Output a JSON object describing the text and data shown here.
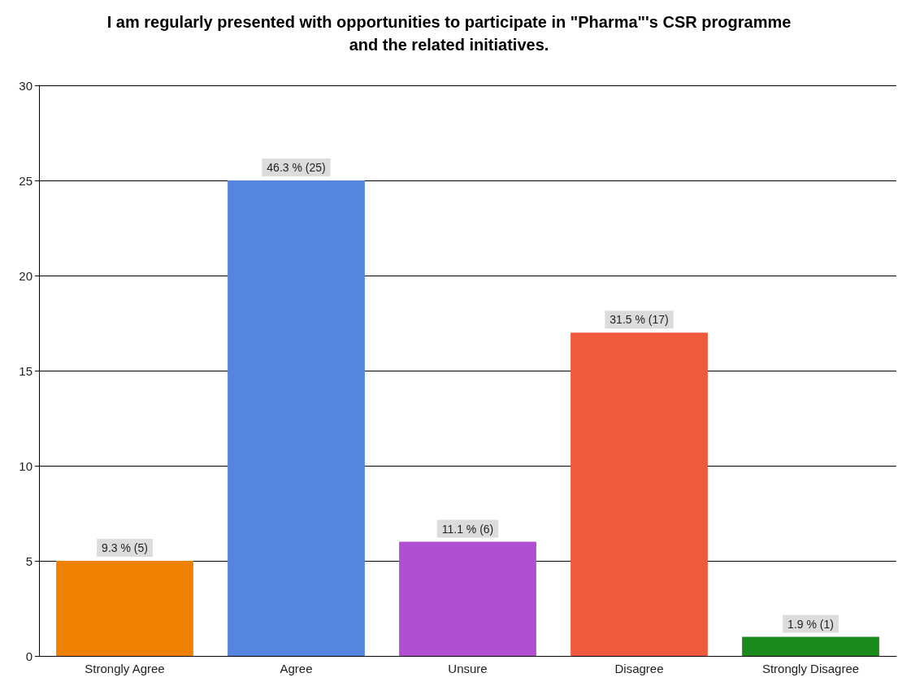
{
  "chart_data": {
    "type": "bar",
    "title": "I am regularly presented with opportunities to participate in \"Pharma\"'s CSR programme\nand the related initiatives.",
    "categories": [
      "Strongly Agree",
      "Agree",
      "Unsure",
      "Disagree",
      "Strongly Disagree"
    ],
    "values": [
      5,
      25,
      6,
      17,
      1
    ],
    "colors": [
      "#f08000",
      "#5585e0",
      "#b050d0",
      "#f05a3c",
      "#1a8a1a"
    ],
    "value_labels": [
      "9.3 % (5)",
      "46.3 % (25)",
      "11.1 % (6)",
      "31.5 % (17)",
      "1.9 % (1)"
    ],
    "ylim": [
      0,
      30
    ],
    "yticks": [
      0,
      5,
      10,
      15,
      20,
      25,
      30
    ],
    "grid": "y"
  }
}
